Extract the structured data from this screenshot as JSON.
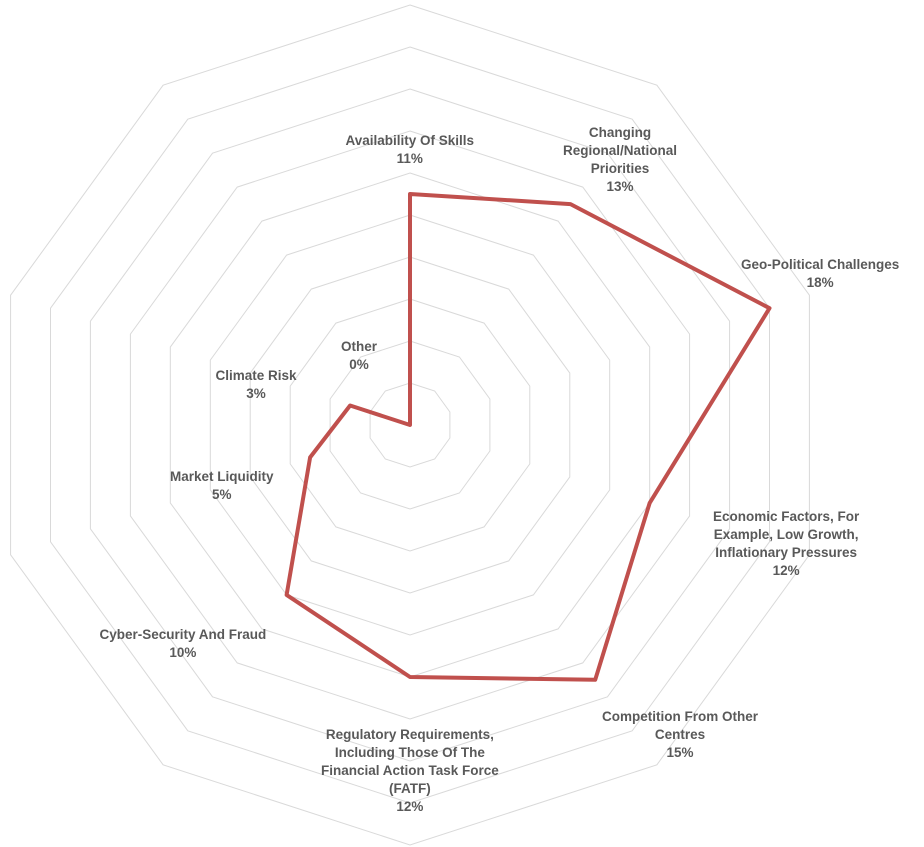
{
  "chart_data": {
    "type": "radar",
    "series": [
      {
        "color": "#c0504d"
      }
    ],
    "categories": [
      {
        "name_lines": [
          "Availability Of Skills"
        ],
        "value": 11,
        "value_label": "11%"
      },
      {
        "name_lines": [
          "Changing",
          "Regional/National",
          "Priorities"
        ],
        "value": 13,
        "value_label": "13%"
      },
      {
        "name_lines": [
          "Geo-Political Challenges"
        ],
        "value": 18,
        "value_label": "18%"
      },
      {
        "name_lines": [
          "Economic Factors, For",
          "Example, Low Growth,",
          "Inflationary Pressures"
        ],
        "value": 12,
        "value_label": "12%"
      },
      {
        "name_lines": [
          "Competition From Other",
          "Centres"
        ],
        "value": 15,
        "value_label": "15%"
      },
      {
        "name_lines": [
          "Regulatory Requirements,",
          "Including Those Of The",
          "Financial Action Task Force",
          "(FATF)"
        ],
        "value": 12,
        "value_label": "12%"
      },
      {
        "name_lines": [
          "Cyber-Security And Fraud"
        ],
        "value": 10,
        "value_label": "10%"
      },
      {
        "name_lines": [
          "Market Liquidity"
        ],
        "value": 5,
        "value_label": "5%"
      },
      {
        "name_lines": [
          "Climate Risk"
        ],
        "value": 3,
        "value_label": "3%"
      },
      {
        "name_lines": [
          "Other"
        ],
        "value": 0,
        "value_label": "0%"
      }
    ],
    "axis_range": [
      0,
      20
    ],
    "grid_rings": 10,
    "grid_color": "#d9d9d9",
    "grid": true,
    "legend": "none"
  }
}
